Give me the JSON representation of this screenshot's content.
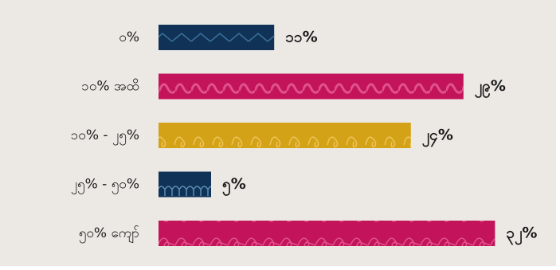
{
  "chart_data": {
    "type": "bar",
    "orientation": "horizontal",
    "categories": [
      "၀%",
      "၁၀% အထိ",
      "၁၀% - ၂၅%",
      "၂၅% - ၅၀%",
      "၅၀% ကျော်"
    ],
    "values": [
      11,
      29,
      24,
      5,
      32
    ],
    "value_labels": [
      "၁၁%",
      "၂၉%",
      "၂၄%",
      "၅%",
      "၃၂%"
    ],
    "colors": [
      "#0f3256",
      "#c3135b",
      "#d4a216",
      "#0f3256",
      "#c3135b"
    ]
  }
}
